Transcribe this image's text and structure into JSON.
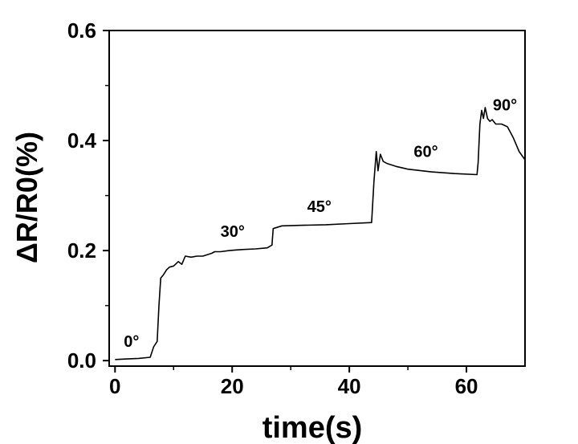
{
  "chart_data": {
    "type": "line",
    "xlabel": "time(s)",
    "ylabel": "ΔR/R0(%)",
    "xlim": [
      -1,
      70
    ],
    "ylim": [
      -0.01,
      0.6
    ],
    "xticks": [
      0,
      20,
      40,
      60
    ],
    "xtick_labels": [
      "0",
      "20",
      "40",
      "60"
    ],
    "yticks": [
      0.0,
      0.2,
      0.4,
      0.6
    ],
    "ytick_labels": [
      "0.0",
      "0.2",
      "0.4",
      "0.6"
    ],
    "grid": false,
    "series": [
      {
        "color": "#000000",
        "x": [
          0,
          2,
          4,
          6,
          6.6,
          7.2,
          7.5,
          7.8,
          8.2,
          8.8,
          9.3,
          10.0,
          10.8,
          11.4,
          12.0,
          13.0,
          14.0,
          15.0,
          16.5,
          17.0,
          18.0,
          19.5,
          20.5,
          22.0,
          24.0,
          26.0,
          26.8,
          27.0,
          28.5,
          32.0,
          36.0,
          40.0,
          43.8,
          44.2,
          44.6,
          44.9,
          45.3,
          45.8,
          46.5,
          48.0,
          50.0,
          54.0,
          58.0,
          61.8,
          62.0,
          62.3,
          62.6,
          62.9,
          63.2,
          63.6,
          64.0,
          64.4,
          65.0,
          66.0,
          67.0,
          68.0,
          69.0,
          70.0
        ],
        "y": [
          0.002,
          0.003,
          0.004,
          0.006,
          0.025,
          0.035,
          0.1,
          0.15,
          0.155,
          0.165,
          0.17,
          0.172,
          0.18,
          0.175,
          0.19,
          0.188,
          0.19,
          0.19,
          0.195,
          0.198,
          0.198,
          0.2,
          0.201,
          0.202,
          0.203,
          0.205,
          0.21,
          0.24,
          0.245,
          0.246,
          0.247,
          0.249,
          0.251,
          0.325,
          0.38,
          0.345,
          0.375,
          0.362,
          0.358,
          0.353,
          0.348,
          0.343,
          0.34,
          0.338,
          0.36,
          0.43,
          0.455,
          0.44,
          0.46,
          0.44,
          0.435,
          0.438,
          0.43,
          0.43,
          0.425,
          0.405,
          0.38,
          0.365
        ]
      }
    ],
    "annotations": [
      {
        "text": "0°",
        "x": 1.5,
        "y": 0.025
      },
      {
        "text": "30°",
        "x": 18.0,
        "y": 0.225
      },
      {
        "text": "45°",
        "x": 32.8,
        "y": 0.27
      },
      {
        "text": "60°",
        "x": 51.0,
        "y": 0.37
      },
      {
        "text": "90°",
        "x": 64.5,
        "y": 0.455
      }
    ]
  }
}
